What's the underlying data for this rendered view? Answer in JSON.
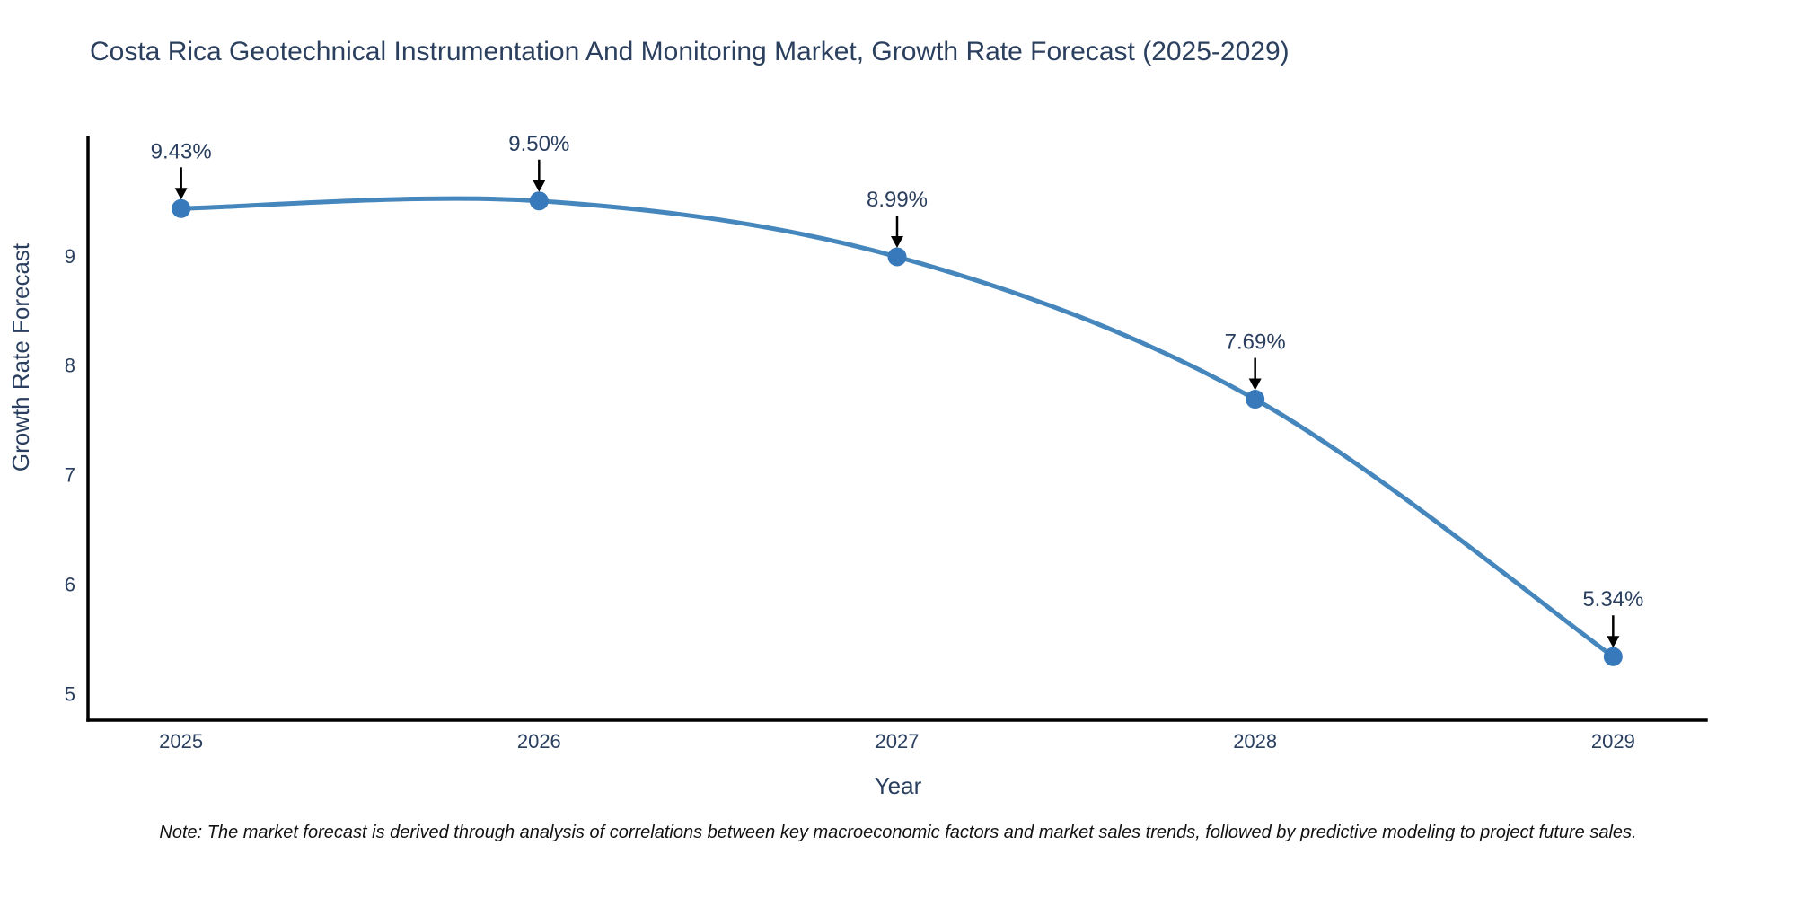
{
  "figure": {
    "note": "Note: The market forecast is derived through analysis of correlations between key macroeconomic factors and market sales trends, followed by predictive modeling to project future sales."
  },
  "chart_data": {
    "type": "line",
    "title": "Costa Rica Geotechnical Instrumentation And Monitoring Market, Growth Rate Forecast (2025-2029)",
    "xlabel": "Year",
    "ylabel": "Growth Rate Forecast",
    "x": [
      2025,
      2026,
      2027,
      2028,
      2029
    ],
    "y": [
      9.43,
      9.5,
      8.99,
      7.69,
      5.34
    ],
    "point_labels": [
      "9.43%",
      "9.50%",
      "8.99%",
      "7.69%",
      "5.34%"
    ],
    "y_ticks": [
      5,
      6,
      7,
      8,
      9
    ],
    "ylim": [
      4.76,
      10.08
    ],
    "xlim": [
      2024.74,
      2029.26
    ],
    "line_shape": "spline",
    "grid": false,
    "legend_position": "none",
    "colors": {
      "line": "#4586bd",
      "marker": "#3779bb",
      "axis": "#000000",
      "text": "#2a3f5f",
      "title": "#2b3f5e",
      "arrow": "#000000",
      "note": "#111111",
      "background": "#ffffff"
    }
  }
}
